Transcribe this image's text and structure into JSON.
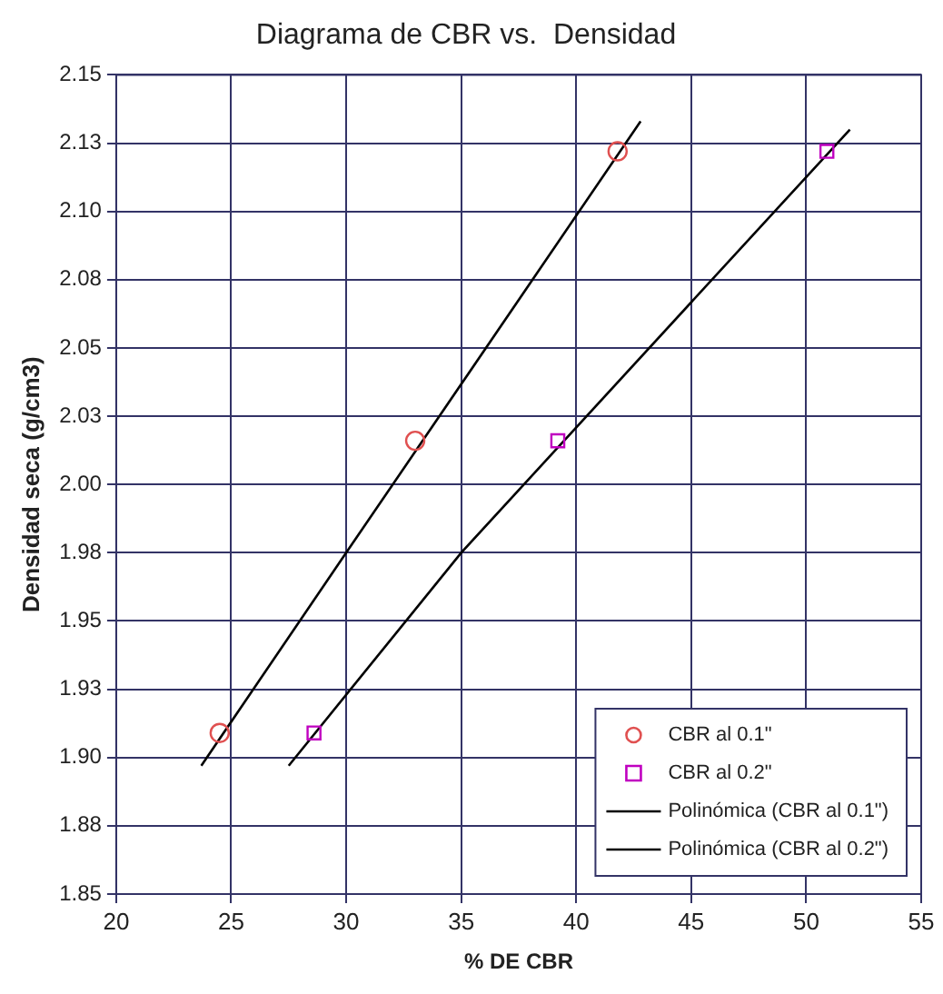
{
  "chart_data": {
    "type": "scatter",
    "title": "Diagrama de CBR vs.  Densidad",
    "xlabel": "% DE CBR",
    "ylabel": "Densidad seca (g/cm3)",
    "xlim": [
      20,
      55
    ],
    "xticks": [
      20,
      25,
      30,
      35,
      40,
      45,
      50,
      55
    ],
    "ylim": [
      1.85,
      2.15
    ],
    "yticks": [
      1.85,
      {
        "value": 1.875,
        "label": "1.88"
      },
      {
        "value": 1.9,
        "label": "1.90"
      },
      {
        "value": 1.925,
        "label": "1.93"
      },
      1.95,
      {
        "value": 1.975,
        "label": "1.98"
      },
      {
        "value": 2.0,
        "label": "2.00"
      },
      {
        "value": 2.025,
        "label": "2.03"
      },
      2.05,
      {
        "value": 2.075,
        "label": "2.08"
      },
      {
        "value": 2.1,
        "label": "2.10"
      },
      {
        "value": 2.125,
        "label": "2.13"
      },
      2.15
    ],
    "grid": true,
    "legend": "bottom right",
    "series": [
      {
        "name": "CBR al 0.1\"",
        "type": "scatter",
        "marker": "circle",
        "color": "#e05050",
        "x": [
          24.5,
          33.0,
          41.8
        ],
        "values": [
          1.909,
          2.016,
          2.122
        ]
      },
      {
        "name": "CBR al 0.2\"",
        "type": "scatter",
        "marker": "square",
        "color": "#c000c0",
        "x": [
          28.6,
          39.2,
          50.9
        ],
        "values": [
          1.909,
          2.016,
          2.122
        ]
      },
      {
        "name": "Polinómica (CBR al 0.1\")",
        "type": "line",
        "marker": "none",
        "color": "#000000",
        "x": [
          23.7,
          30.0,
          42.8
        ],
        "values": [
          1.897,
          1.975,
          2.133
        ]
      },
      {
        "name": "Polinómica (CBR al 0.2\")",
        "type": "line",
        "marker": "none",
        "color": "#000000",
        "x": [
          27.5,
          35.0,
          51.9
        ],
        "values": [
          1.897,
          1.975,
          2.13
        ]
      }
    ]
  }
}
